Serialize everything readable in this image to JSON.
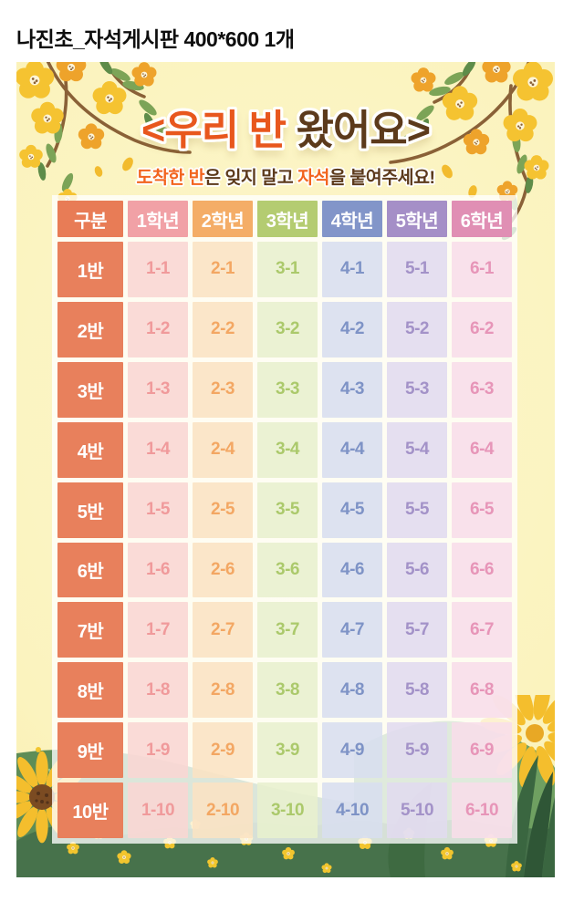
{
  "page": {
    "caption": "나진초_자석게시판 400*600 1개"
  },
  "poster": {
    "background_color": "#FBF3BE",
    "title": {
      "segments": [
        {
          "text": "<우리 반 ",
          "color": "#E8571D"
        },
        {
          "text": "왔어요>",
          "color": "#5C3A1B"
        }
      ]
    },
    "subtitle": {
      "segments": [
        {
          "text": "도착한 반",
          "color": "#F2641E"
        },
        {
          "text": "은 잊지 말고 ",
          "color": "#5C3A1B"
        },
        {
          "text": "자석",
          "color": "#F2641E"
        },
        {
          "text": "을 붙여주세요!",
          "color": "#5C3A1B"
        }
      ]
    }
  },
  "table": {
    "corner": {
      "label": "구분",
      "color": "#E87C56"
    },
    "row_label_color": "#E8805C",
    "grades": [
      {
        "label": "1학년",
        "header_color": "#F1A1A6",
        "cell_bg": "rgba(249,214,211,0.88)",
        "cell_text": "#F09A9B"
      },
      {
        "label": "2학년",
        "header_color": "#F4AD67",
        "cell_bg": "rgba(250,227,195,0.88)",
        "cell_text": "#F3A763"
      },
      {
        "label": "3학년",
        "header_color": "#B4CC71",
        "cell_bg": "rgba(232,240,206,0.88)",
        "cell_text": "#ABC96B"
      },
      {
        "label": "4학년",
        "header_color": "#8295C9",
        "cell_bg": "rgba(216,222,239,0.88)",
        "cell_text": "#7E93C6"
      },
      {
        "label": "5학년",
        "header_color": "#A58FC7",
        "cell_bg": "rgba(225,219,239,0.88)",
        "cell_text": "#A392C8"
      },
      {
        "label": "6학년",
        "header_color": "#E08FB4",
        "cell_bg": "rgba(248,221,233,0.88)",
        "cell_text": "#E795B8"
      }
    ],
    "rows": [
      {
        "label": "1반",
        "cells": [
          "1-1",
          "2-1",
          "3-1",
          "4-1",
          "5-1",
          "6-1"
        ]
      },
      {
        "label": "2반",
        "cells": [
          "1-2",
          "2-2",
          "3-2",
          "4-2",
          "5-2",
          "6-2"
        ]
      },
      {
        "label": "3반",
        "cells": [
          "1-3",
          "2-3",
          "3-3",
          "4-3",
          "5-3",
          "6-3"
        ]
      },
      {
        "label": "4반",
        "cells": [
          "1-4",
          "2-4",
          "3-4",
          "4-4",
          "5-4",
          "6-4"
        ]
      },
      {
        "label": "5반",
        "cells": [
          "1-5",
          "2-5",
          "3-5",
          "4-5",
          "5-5",
          "6-5"
        ]
      },
      {
        "label": "6반",
        "cells": [
          "1-6",
          "2-6",
          "3-6",
          "4-6",
          "5-6",
          "6-6"
        ]
      },
      {
        "label": "7반",
        "cells": [
          "1-7",
          "2-7",
          "3-7",
          "4-7",
          "5-7",
          "6-7"
        ]
      },
      {
        "label": "8반",
        "cells": [
          "1-8",
          "2-8",
          "3-8",
          "4-8",
          "5-8",
          "6-8"
        ]
      },
      {
        "label": "9반",
        "cells": [
          "1-9",
          "2-9",
          "3-9",
          "4-9",
          "5-9",
          "6-9"
        ]
      },
      {
        "label": "10반",
        "cells": [
          "1-10",
          "2-10",
          "3-10",
          "4-10",
          "5-10",
          "6-10"
        ]
      }
    ]
  }
}
